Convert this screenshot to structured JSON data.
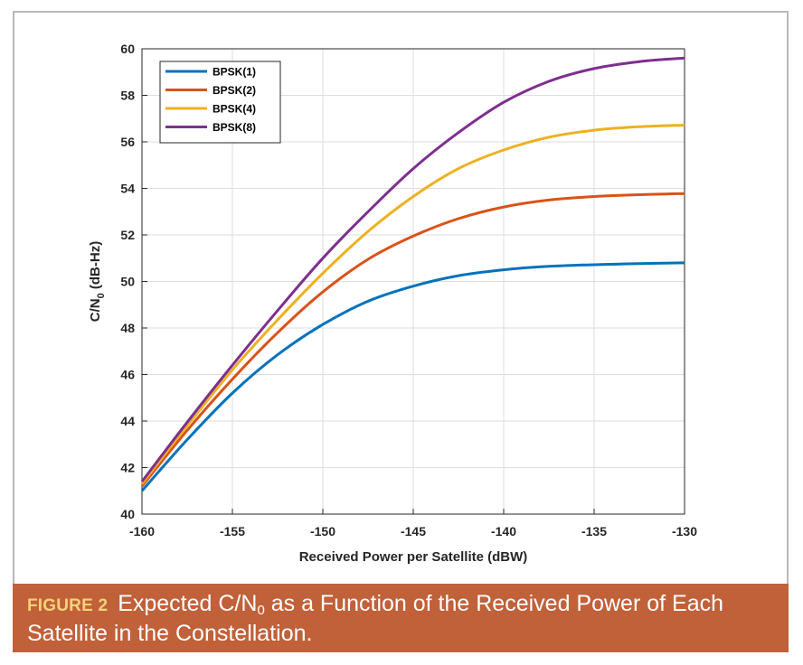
{
  "chart_data": {
    "type": "line",
    "xlabel": "Received Power per Satellite (dBW)",
    "ylabel": {
      "main": "C/N",
      "sub": "0",
      "unit": " (dB-Hz)"
    },
    "xlim": [
      -160,
      -130
    ],
    "ylim": [
      40,
      60
    ],
    "x_ticks": [
      -160,
      -155,
      -150,
      -145,
      -140,
      -135,
      -130
    ],
    "y_ticks": [
      40,
      42,
      44,
      46,
      48,
      50,
      52,
      54,
      56,
      58,
      60
    ],
    "grid": true,
    "legend_position": "top-left",
    "x": [
      -160,
      -157.5,
      -155,
      -152.5,
      -150,
      -147.5,
      -145,
      -142.5,
      -140,
      -137.5,
      -135,
      -132.5,
      -130
    ],
    "series": [
      {
        "name": "BPSK(1)",
        "color": "#0072bd",
        "values": [
          41.0,
          43.2,
          45.2,
          46.85,
          48.15,
          49.15,
          49.8,
          50.25,
          50.5,
          50.65,
          50.72,
          50.77,
          50.8
        ]
      },
      {
        "name": "BPSK(2)",
        "color": "#d95319",
        "values": [
          41.2,
          43.6,
          45.8,
          47.8,
          49.55,
          50.95,
          51.95,
          52.7,
          53.2,
          53.5,
          53.65,
          53.73,
          53.78
        ]
      },
      {
        "name": "BPSK(4)",
        "color": "#edb120",
        "values": [
          41.3,
          43.8,
          46.2,
          48.35,
          50.35,
          52.15,
          53.65,
          54.85,
          55.65,
          56.2,
          56.5,
          56.65,
          56.72
        ]
      },
      {
        "name": "BPSK(8)",
        "color": "#7e2f8e",
        "values": [
          41.4,
          43.95,
          46.4,
          48.75,
          51.0,
          53.0,
          54.85,
          56.4,
          57.7,
          58.6,
          59.15,
          59.45,
          59.6
        ]
      }
    ]
  },
  "caption": {
    "label": "FIGURE 2",
    "text_before": "Expected C/N",
    "text_sub": "0",
    "text_after": " as a Function of the Received Power of Each Satellite in the Constellation.",
    "background": "#c0613a",
    "label_color": "#f6d27a"
  }
}
